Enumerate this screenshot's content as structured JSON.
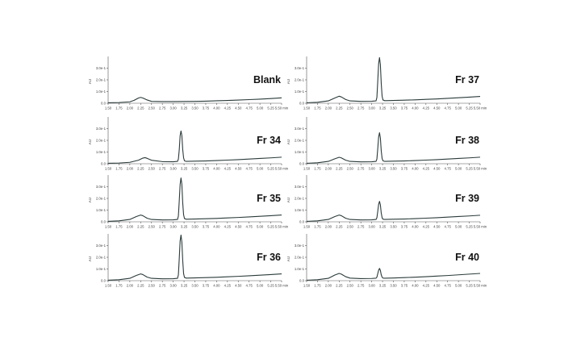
{
  "chart_data": [
    {
      "type": "line",
      "title": "Blank",
      "ylabel": "AU",
      "x_tick_labels": [
        "1.50",
        "1.75",
        "2.00",
        "2.25",
        "2.50",
        "2.75",
        "3.00",
        "3.25",
        "3.50",
        "3.75",
        "4.00",
        "4.25",
        "4.50",
        "4.75",
        "5.00",
        "5.25",
        "5.50 min"
      ],
      "y_tick_labels": [
        "0.0",
        "1.0e-1",
        "2.0e-1",
        "3.0e-1"
      ],
      "xlim": [
        1.5,
        5.5
      ],
      "ylim": [
        0,
        0.4
      ],
      "x": [
        1.5,
        1.75,
        2.0,
        2.1,
        2.2,
        2.25,
        2.3,
        2.4,
        2.5,
        2.75,
        3.0,
        3.25,
        3.5,
        3.75,
        4.0,
        4.25,
        4.5,
        4.75,
        5.0,
        5.25,
        5.5
      ],
      "y": [
        0.004,
        0.006,
        0.012,
        0.025,
        0.045,
        0.05,
        0.045,
        0.028,
        0.016,
        0.014,
        0.014,
        0.015,
        0.016,
        0.018,
        0.021,
        0.024,
        0.027,
        0.031,
        0.035,
        0.04,
        0.046
      ]
    },
    {
      "type": "line",
      "title": "Fr 34",
      "ylabel": "AU",
      "x_tick_labels": [
        "1.50",
        "1.75",
        "2.00",
        "2.25",
        "2.50",
        "2.75",
        "3.00",
        "3.25",
        "3.50",
        "3.75",
        "4.00",
        "4.25",
        "4.50",
        "4.75",
        "5.00",
        "5.25",
        "5.50 min"
      ],
      "y_tick_labels": [
        "0.0",
        "1.0e-1",
        "2.0e-1",
        "3.0e-1"
      ],
      "xlim": [
        1.5,
        5.5
      ],
      "ylim": [
        0,
        0.4
      ],
      "x": [
        1.5,
        1.75,
        2.0,
        2.2,
        2.3,
        2.35,
        2.4,
        2.5,
        2.75,
        3.0,
        3.1,
        3.12,
        3.14,
        3.16,
        3.18,
        3.2,
        3.22,
        3.24,
        3.26,
        3.3,
        3.5,
        3.75,
        4.0,
        4.25,
        4.5,
        4.75,
        5.0,
        5.25,
        5.5
      ],
      "y": [
        0.004,
        0.006,
        0.012,
        0.03,
        0.048,
        0.052,
        0.046,
        0.03,
        0.018,
        0.017,
        0.02,
        0.04,
        0.12,
        0.24,
        0.28,
        0.24,
        0.12,
        0.05,
        0.025,
        0.02,
        0.022,
        0.024,
        0.027,
        0.031,
        0.035,
        0.04,
        0.045,
        0.05,
        0.056
      ]
    },
    {
      "type": "line",
      "title": "Fr 35",
      "ylabel": "AU",
      "x_tick_labels": [
        "1.50",
        "1.75",
        "2.00",
        "2.25",
        "2.50",
        "2.75",
        "3.00",
        "3.25",
        "3.50",
        "3.75",
        "4.00",
        "4.25",
        "4.50",
        "4.75",
        "5.00",
        "5.25",
        "5.50 min"
      ],
      "y_tick_labels": [
        "0.0",
        "1.0e-1",
        "2.0e-1",
        "3.0e-1"
      ],
      "xlim": [
        1.5,
        5.5
      ],
      "ylim": [
        0,
        0.4
      ],
      "x": [
        1.5,
        1.75,
        2.0,
        2.15,
        2.25,
        2.3,
        2.4,
        2.5,
        2.75,
        3.0,
        3.1,
        3.12,
        3.14,
        3.16,
        3.18,
        3.2,
        3.22,
        3.24,
        3.26,
        3.3,
        3.5,
        3.75,
        4.0,
        4.25,
        4.5,
        4.75,
        5.0,
        5.25,
        5.5
      ],
      "y": [
        0.004,
        0.008,
        0.02,
        0.045,
        0.058,
        0.052,
        0.03,
        0.02,
        0.016,
        0.017,
        0.02,
        0.05,
        0.18,
        0.32,
        0.375,
        0.32,
        0.16,
        0.06,
        0.028,
        0.022,
        0.024,
        0.026,
        0.029,
        0.033,
        0.037,
        0.042,
        0.047,
        0.052,
        0.058
      ]
    },
    {
      "type": "line",
      "title": "Fr 36",
      "ylabel": "AU",
      "x_tick_labels": [
        "1.50",
        "1.75",
        "2.00",
        "2.25",
        "2.50",
        "2.75",
        "3.00",
        "3.25",
        "3.50",
        "3.75",
        "4.00",
        "4.25",
        "4.50",
        "4.75",
        "5.00",
        "5.25",
        "5.50 min"
      ],
      "y_tick_labels": [
        "0.0",
        "1.0e-1",
        "2.0e-1",
        "3.0e-1"
      ],
      "xlim": [
        1.5,
        5.5
      ],
      "ylim": [
        0,
        0.4
      ],
      "x": [
        1.5,
        1.75,
        2.0,
        2.15,
        2.25,
        2.3,
        2.4,
        2.5,
        2.75,
        3.0,
        3.1,
        3.12,
        3.14,
        3.16,
        3.18,
        3.2,
        3.22,
        3.24,
        3.26,
        3.3,
        3.5,
        3.75,
        4.0,
        4.25,
        4.5,
        4.75,
        5.0,
        5.25,
        5.5
      ],
      "y": [
        0.004,
        0.008,
        0.02,
        0.045,
        0.058,
        0.052,
        0.03,
        0.02,
        0.016,
        0.017,
        0.02,
        0.05,
        0.19,
        0.34,
        0.39,
        0.33,
        0.17,
        0.06,
        0.028,
        0.022,
        0.024,
        0.026,
        0.029,
        0.033,
        0.037,
        0.042,
        0.047,
        0.052,
        0.058
      ]
    },
    {
      "type": "line",
      "title": "Fr 37",
      "ylabel": "AU",
      "x_tick_labels": [
        "1.50",
        "1.75",
        "2.00",
        "2.25",
        "2.50",
        "2.75",
        "3.00",
        "3.25",
        "3.50",
        "3.75",
        "4.00",
        "4.25",
        "4.50",
        "4.75",
        "5.00",
        "5.25",
        "5.50 min"
      ],
      "y_tick_labels": [
        "0.0",
        "1.0e-1",
        "2.0e-1",
        "3.0e-1"
      ],
      "xlim": [
        1.5,
        5.5
      ],
      "ylim": [
        0,
        0.4
      ],
      "x": [
        1.5,
        1.75,
        2.0,
        2.15,
        2.25,
        2.3,
        2.4,
        2.5,
        2.75,
        3.0,
        3.1,
        3.12,
        3.14,
        3.16,
        3.18,
        3.2,
        3.22,
        3.24,
        3.26,
        3.3,
        3.5,
        3.75,
        4.0,
        4.25,
        4.5,
        4.75,
        5.0,
        5.25,
        5.5
      ],
      "y": [
        0.004,
        0.008,
        0.02,
        0.045,
        0.06,
        0.054,
        0.032,
        0.02,
        0.016,
        0.017,
        0.02,
        0.05,
        0.19,
        0.34,
        0.39,
        0.33,
        0.17,
        0.06,
        0.028,
        0.022,
        0.024,
        0.026,
        0.029,
        0.033,
        0.037,
        0.042,
        0.047,
        0.052,
        0.058
      ]
    },
    {
      "type": "line",
      "title": "Fr 38",
      "ylabel": "AU",
      "x_tick_labels": [
        "1.50",
        "1.75",
        "2.00",
        "2.25",
        "2.50",
        "2.75",
        "3.00",
        "3.25",
        "3.50",
        "3.75",
        "4.00",
        "4.25",
        "4.50",
        "4.75",
        "5.00",
        "5.25",
        "5.50 min"
      ],
      "y_tick_labels": [
        "0.0",
        "1.0e-1",
        "2.0e-1",
        "3.0e-1"
      ],
      "xlim": [
        1.5,
        5.5
      ],
      "ylim": [
        0,
        0.4
      ],
      "x": [
        1.5,
        1.75,
        2.0,
        2.15,
        2.25,
        2.3,
        2.4,
        2.5,
        2.75,
        3.0,
        3.1,
        3.12,
        3.14,
        3.16,
        3.18,
        3.2,
        3.22,
        3.24,
        3.26,
        3.3,
        3.5,
        3.75,
        4.0,
        4.25,
        4.5,
        4.75,
        5.0,
        5.25,
        5.5
      ],
      "y": [
        0.004,
        0.008,
        0.02,
        0.042,
        0.055,
        0.05,
        0.03,
        0.02,
        0.016,
        0.017,
        0.02,
        0.04,
        0.13,
        0.23,
        0.265,
        0.22,
        0.11,
        0.045,
        0.025,
        0.02,
        0.022,
        0.024,
        0.027,
        0.031,
        0.035,
        0.04,
        0.045,
        0.05,
        0.056
      ]
    },
    {
      "type": "line",
      "title": "Fr 39",
      "ylabel": "AU",
      "x_tick_labels": [
        "1.50",
        "1.75",
        "2.00",
        "2.25",
        "2.50",
        "2.75",
        "3.00",
        "3.25",
        "3.50",
        "3.75",
        "4.00",
        "4.25",
        "4.50",
        "4.75",
        "5.00",
        "5.25",
        "5.50 min"
      ],
      "y_tick_labels": [
        "0.0",
        "1.0e-1",
        "2.0e-1",
        "3.0e-1"
      ],
      "xlim": [
        1.5,
        5.5
      ],
      "ylim": [
        0,
        0.4
      ],
      "x": [
        1.5,
        1.75,
        2.0,
        2.15,
        2.25,
        2.3,
        2.4,
        2.5,
        2.75,
        3.0,
        3.1,
        3.12,
        3.14,
        3.16,
        3.18,
        3.2,
        3.22,
        3.24,
        3.26,
        3.3,
        3.5,
        3.75,
        4.0,
        4.25,
        4.5,
        4.75,
        5.0,
        5.25,
        5.5
      ],
      "y": [
        0.004,
        0.008,
        0.02,
        0.045,
        0.058,
        0.052,
        0.03,
        0.02,
        0.016,
        0.017,
        0.02,
        0.035,
        0.09,
        0.15,
        0.175,
        0.145,
        0.075,
        0.035,
        0.022,
        0.02,
        0.022,
        0.024,
        0.027,
        0.031,
        0.035,
        0.04,
        0.045,
        0.05,
        0.056
      ]
    },
    {
      "type": "line",
      "title": "Fr 40",
      "ylabel": "AU",
      "x_tick_labels": [
        "1.50",
        "1.75",
        "2.00",
        "2.25",
        "2.50",
        "2.75",
        "3.00",
        "3.25",
        "3.50",
        "3.75",
        "4.00",
        "4.25",
        "4.50",
        "4.75",
        "5.00",
        "5.25",
        "5.50 min"
      ],
      "y_tick_labels": [
        "0.0",
        "1.0e-1",
        "2.0e-1",
        "3.0e-1"
      ],
      "xlim": [
        1.5,
        5.5
      ],
      "ylim": [
        0,
        0.4
      ],
      "x": [
        1.5,
        1.75,
        2.0,
        2.15,
        2.25,
        2.3,
        2.4,
        2.5,
        2.75,
        3.0,
        3.1,
        3.12,
        3.14,
        3.16,
        3.18,
        3.2,
        3.22,
        3.24,
        3.26,
        3.3,
        3.5,
        3.75,
        4.0,
        4.25,
        4.5,
        4.75,
        5.0,
        5.25,
        5.5
      ],
      "y": [
        0.004,
        0.008,
        0.02,
        0.048,
        0.062,
        0.056,
        0.034,
        0.022,
        0.018,
        0.019,
        0.021,
        0.03,
        0.06,
        0.09,
        0.105,
        0.088,
        0.05,
        0.03,
        0.022,
        0.021,
        0.023,
        0.026,
        0.03,
        0.034,
        0.039,
        0.044,
        0.05,
        0.056,
        0.062
      ]
    }
  ]
}
